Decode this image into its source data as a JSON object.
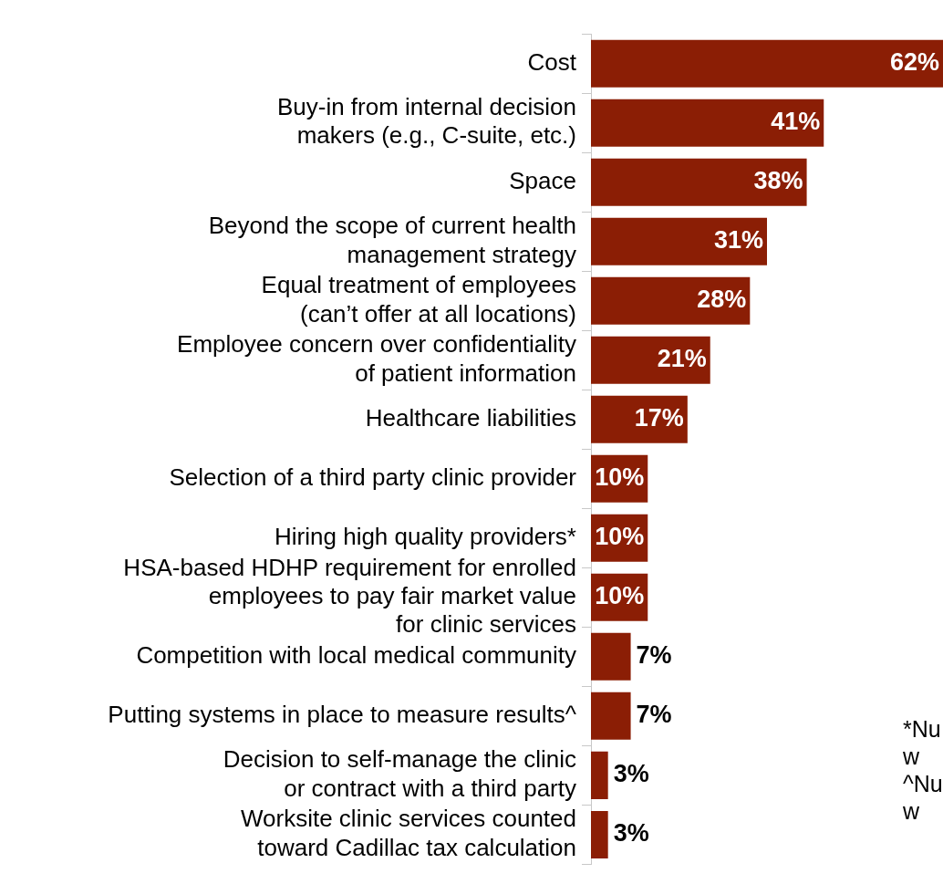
{
  "chart_data": {
    "type": "bar",
    "orientation": "horizontal",
    "categories": [
      "Cost",
      "Buy-in from internal decision\nmakers (e.g., C-suite, etc.)",
      "Space",
      "Beyond the scope of current health\nmanagement strategy",
      "Equal treatment of employees\n(can’t offer at all locations)",
      "Employee concern over confidentiality\nof patient information",
      "Healthcare liabilities",
      "Selection of a third party clinic provider",
      "Hiring high quality providers*",
      "HSA-based HDHP requirement for enrolled\nemployees to pay fair market value\nfor clinic services",
      "Competition with local medical community",
      "Putting systems in place to measure results^",
      "Decision to self-manage the clinic\nor contract with a third party",
      "Worksite clinic services counted\ntoward Cadillac tax calculation"
    ],
    "values": [
      62,
      41,
      38,
      31,
      28,
      21,
      17,
      10,
      10,
      10,
      7,
      7,
      3,
      3
    ],
    "value_labels": [
      "62%",
      "41%",
      "38%",
      "31%",
      "28%",
      "21%",
      "17%",
      "10%",
      "10%",
      "10%",
      "7%",
      "7%",
      "3%",
      "3%"
    ],
    "color": "#8b1e05",
    "grid": false,
    "legend": false,
    "annotations": [
      "*Nu",
      "w",
      "^Nu",
      "w"
    ]
  }
}
